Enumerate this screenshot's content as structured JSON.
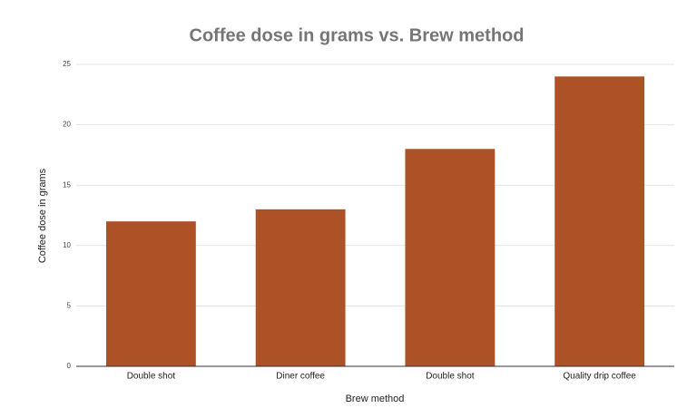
{
  "chart_data": {
    "type": "bar",
    "title": "Coffee dose in grams vs. Brew method",
    "x_label": "Brew method",
    "y_label": "Coffee dose in grams",
    "categories": [
      "Double shot",
      "Diner coffee",
      "Double shot",
      "Quality drip coffee"
    ],
    "values": [
      12,
      13,
      18,
      24
    ],
    "color": "#ad5227",
    "ylim": [
      0,
      25
    ],
    "yticks": [
      0,
      5,
      10,
      15,
      20,
      25
    ],
    "grid": true
  }
}
